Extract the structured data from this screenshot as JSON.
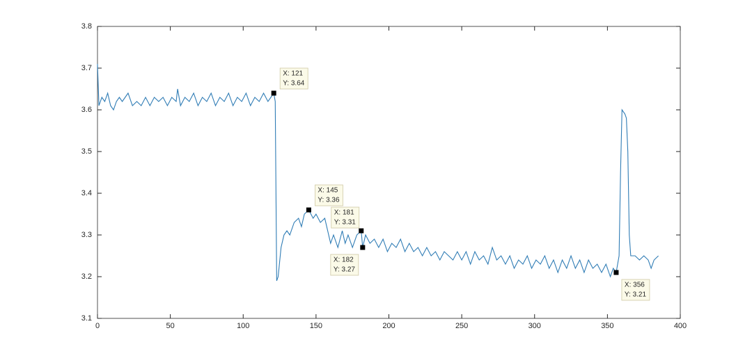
{
  "chart_data": {
    "type": "line",
    "x": [
      0,
      1,
      3,
      5,
      7,
      9,
      11,
      13,
      15,
      17,
      19,
      21,
      24,
      27,
      30,
      33,
      36,
      39,
      42,
      45,
      48,
      51,
      54,
      55,
      57,
      60,
      63,
      66,
      69,
      72,
      75,
      78,
      81,
      84,
      87,
      90,
      93,
      96,
      99,
      102,
      105,
      108,
      111,
      114,
      117,
      119,
      121,
      122,
      123,
      124,
      126,
      128,
      130,
      132,
      135,
      138,
      140,
      142,
      145,
      148,
      150,
      153,
      156,
      158,
      160,
      162,
      165,
      168,
      170,
      172,
      175,
      178,
      181,
      182,
      184,
      187,
      190,
      193,
      196,
      199,
      202,
      205,
      208,
      211,
      214,
      217,
      220,
      223,
      226,
      229,
      232,
      235,
      238,
      241,
      244,
      247,
      250,
      253,
      256,
      259,
      262,
      265,
      268,
      271,
      274,
      277,
      280,
      283,
      286,
      289,
      292,
      295,
      298,
      301,
      304,
      307,
      310,
      313,
      316,
      319,
      322,
      325,
      328,
      331,
      334,
      337,
      340,
      343,
      346,
      349,
      352,
      354,
      356,
      358,
      359,
      360,
      362,
      363,
      364,
      365,
      366,
      369,
      372,
      375,
      378,
      380,
      382,
      385
    ],
    "series": [
      {
        "color": "#2f7cb5",
        "values": [
          3.71,
          3.61,
          3.63,
          3.62,
          3.64,
          3.61,
          3.6,
          3.62,
          3.63,
          3.62,
          3.63,
          3.64,
          3.61,
          3.62,
          3.61,
          3.63,
          3.61,
          3.63,
          3.62,
          3.63,
          3.61,
          3.63,
          3.62,
          3.65,
          3.61,
          3.63,
          3.62,
          3.64,
          3.61,
          3.63,
          3.62,
          3.64,
          3.61,
          3.63,
          3.62,
          3.64,
          3.61,
          3.63,
          3.62,
          3.64,
          3.61,
          3.63,
          3.62,
          3.64,
          3.62,
          3.63,
          3.64,
          3.62,
          3.19,
          3.2,
          3.27,
          3.3,
          3.31,
          3.3,
          3.33,
          3.34,
          3.32,
          3.35,
          3.36,
          3.34,
          3.35,
          3.33,
          3.34,
          3.31,
          3.28,
          3.3,
          3.27,
          3.31,
          3.28,
          3.3,
          3.27,
          3.3,
          3.31,
          3.27,
          3.3,
          3.28,
          3.29,
          3.27,
          3.29,
          3.26,
          3.28,
          3.27,
          3.29,
          3.26,
          3.28,
          3.26,
          3.27,
          3.25,
          3.27,
          3.25,
          3.26,
          3.24,
          3.26,
          3.25,
          3.24,
          3.26,
          3.24,
          3.26,
          3.23,
          3.26,
          3.24,
          3.25,
          3.23,
          3.27,
          3.24,
          3.25,
          3.23,
          3.25,
          3.22,
          3.24,
          3.23,
          3.25,
          3.22,
          3.24,
          3.23,
          3.25,
          3.22,
          3.24,
          3.21,
          3.24,
          3.22,
          3.25,
          3.22,
          3.24,
          3.21,
          3.24,
          3.22,
          3.23,
          3.21,
          3.23,
          3.2,
          3.22,
          3.21,
          3.25,
          3.45,
          3.6,
          3.59,
          3.58,
          3.5,
          3.3,
          3.25,
          3.25,
          3.24,
          3.25,
          3.24,
          3.22,
          3.24,
          3.25
        ]
      }
    ],
    "xlim": [
      0,
      400
    ],
    "xticks": [
      0,
      50,
      100,
      150,
      200,
      250,
      300,
      350,
      400
    ],
    "ylim": [
      3.1,
      3.8
    ],
    "yticks": [
      3.1,
      3.2,
      3.3,
      3.4,
      3.5,
      3.6,
      3.7,
      3.8
    ],
    "datatips": [
      {
        "x": 121,
        "y": 3.64,
        "x_label": "X: 121",
        "y_label": "Y: 3.64"
      },
      {
        "x": 145,
        "y": 3.36,
        "x_label": "X: 145",
        "y_label": "Y: 3.36"
      },
      {
        "x": 181,
        "y": 3.31,
        "x_label": "X: 181",
        "y_label": "Y: 3.31"
      },
      {
        "x": 182,
        "y": 3.27,
        "x_label": "X: 182",
        "y_label": "Y: 3.27"
      },
      {
        "x": 356,
        "y": 3.21,
        "x_label": "X: 356",
        "y_label": "Y: 3.21"
      }
    ]
  }
}
